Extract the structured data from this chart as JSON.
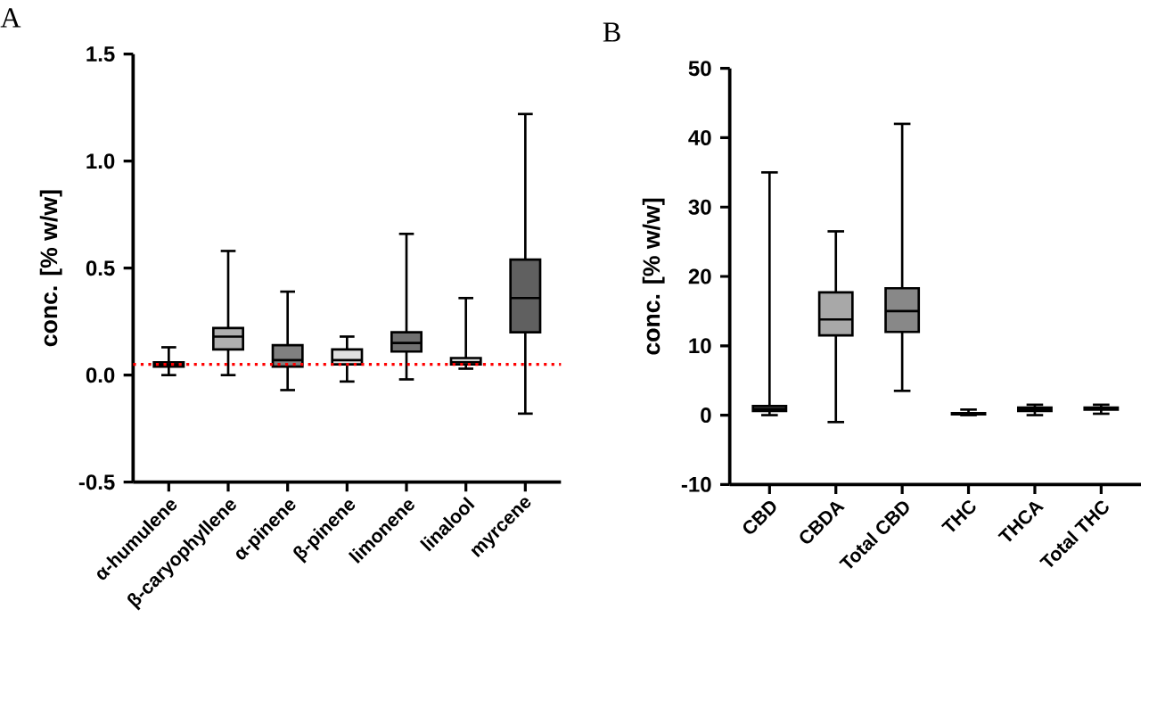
{
  "chart_data": [
    {
      "type": "box",
      "title": "A",
      "ylabel": "conc. [% w/w]",
      "categories": [
        "α-humulene",
        "β-caryophyllene",
        "α-pinene",
        "β-pinene",
        "limonene",
        "linalool",
        "myrcene"
      ],
      "boxes": [
        {
          "low": 0.0,
          "q1": 0.04,
          "median": 0.05,
          "q3": 0.06,
          "high": 0.13
        },
        {
          "low": 0.0,
          "q1": 0.12,
          "median": 0.18,
          "q3": 0.22,
          "high": 0.58
        },
        {
          "low": -0.07,
          "q1": 0.04,
          "median": 0.07,
          "q3": 0.14,
          "high": 0.39
        },
        {
          "low": -0.03,
          "q1": 0.05,
          "median": 0.07,
          "q3": 0.12,
          "high": 0.18
        },
        {
          "low": -0.02,
          "q1": 0.11,
          "median": 0.15,
          "q3": 0.2,
          "high": 0.66
        },
        {
          "low": 0.03,
          "q1": 0.05,
          "median": 0.06,
          "q3": 0.08,
          "high": 0.36
        },
        {
          "low": -0.18,
          "q1": 0.2,
          "median": 0.36,
          "q3": 0.54,
          "high": 1.22
        }
      ],
      "colors": [
        "#404040",
        "#b0b0b0",
        "#808080",
        "#e0e0e0",
        "#707070",
        "#d0d0d0",
        "#606060"
      ],
      "ylim": [
        -0.5,
        1.5
      ],
      "yticks": [
        -0.5,
        {
          "value": 0,
          "label": "0.0"
        },
        0.5,
        {
          "value": 1,
          "label": "1.0"
        },
        1.5
      ],
      "ref_lines": [
        {
          "axis": "y",
          "value": 0.05,
          "color": "#ff0000",
          "line_style": "dotted"
        }
      ]
    },
    {
      "type": "box",
      "title": "B",
      "ylabel": "conc. [% w/w]",
      "categories": [
        "CBD",
        "CBDA",
        "Total CBD",
        "THC",
        "THCA",
        "Total THC"
      ],
      "boxes": [
        {
          "low": 0,
          "q1": 0.6,
          "median": 0.9,
          "q3": 1.3,
          "high": 35
        },
        {
          "low": -1,
          "q1": 11.5,
          "median": 13.8,
          "q3": 17.7,
          "high": 26.5
        },
        {
          "low": 3.5,
          "q1": 12,
          "median": 15,
          "q3": 18.3,
          "high": 42
        },
        {
          "low": 0,
          "q1": 0.1,
          "median": 0.2,
          "q3": 0.3,
          "high": 0.8
        },
        {
          "low": 0,
          "q1": 0.6,
          "median": 0.9,
          "q3": 1.1,
          "high": 1.5
        },
        {
          "low": 0.2,
          "q1": 0.8,
          "median": 1.0,
          "q3": 1.1,
          "high": 1.5
        }
      ],
      "colors": [
        "#909090",
        "#a8a8a8",
        "#888888",
        "#404040",
        "#404040",
        "#404040"
      ],
      "ylim": [
        -10,
        50
      ],
      "yticks": [
        -10,
        0,
        10,
        20,
        30,
        40,
        50
      ]
    }
  ]
}
